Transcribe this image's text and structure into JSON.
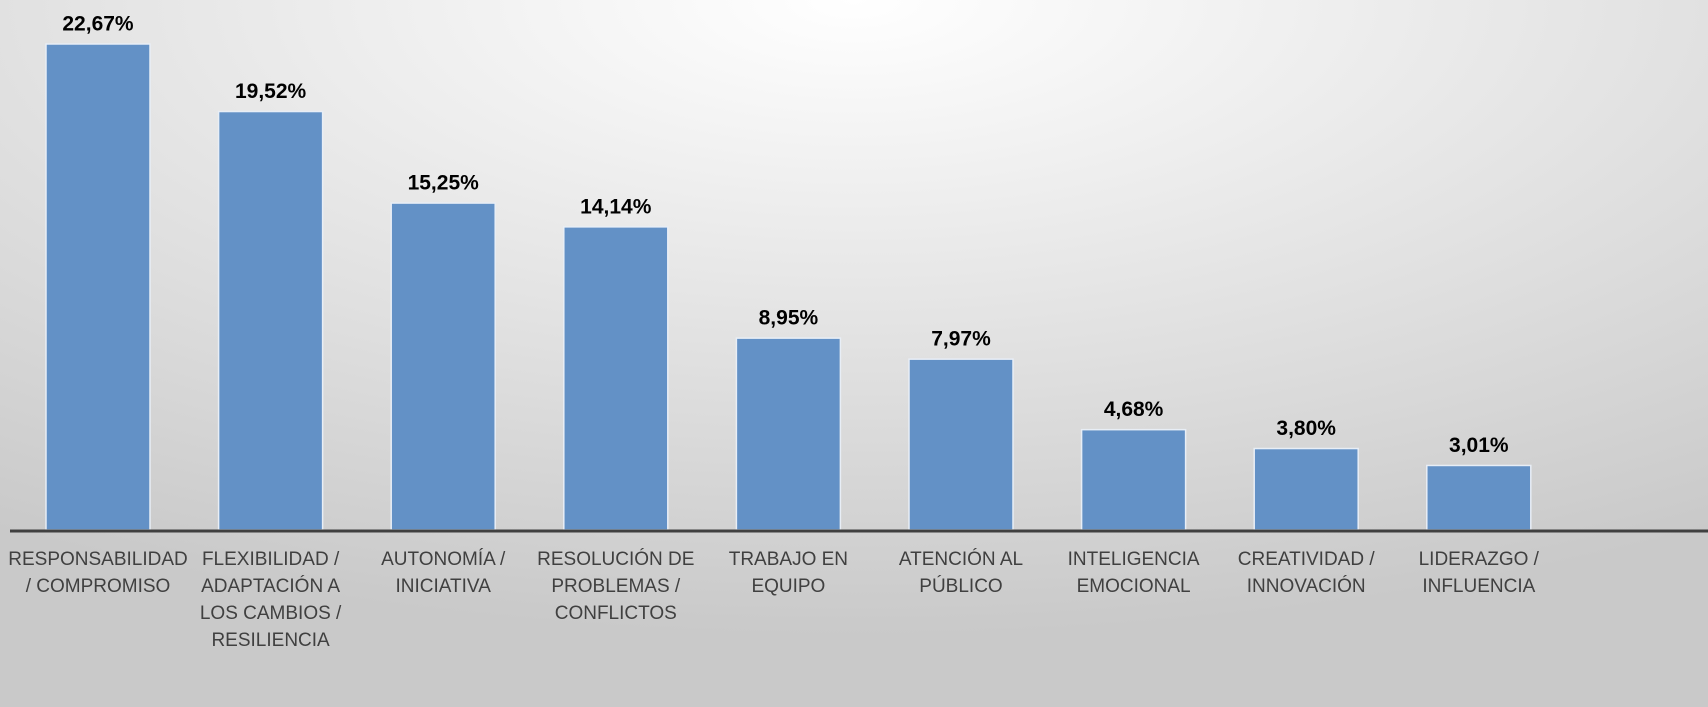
{
  "chart_data": {
    "type": "bar",
    "categories": [
      "RESPONSABILIDAD / COMPROMISO",
      "FLEXIBILIDAD / ADAPTACIÓN A LOS CAMBIOS / RESILIENCIA",
      "AUTONOMÍA / INICIATIVA",
      "RESOLUCIÓN DE PROBLEMAS / CONFLICTOS",
      "TRABAJO EN EQUIPO",
      "ATENCIÓN AL PÚBLICO",
      "INTELIGENCIA EMOCIONAL",
      "CREATIVIDAD / INNOVACIÓN",
      "LIDERAZGO / INFLUENCIA"
    ],
    "values": [
      22.67,
      19.52,
      15.25,
      14.14,
      8.95,
      7.97,
      4.68,
      3.8,
      3.01
    ],
    "value_labels": [
      "22,67%",
      "19,52%",
      "15,25%",
      "14,14%",
      "8,95%",
      "7,97%",
      "4,68%",
      "3,80%",
      "3,01%"
    ],
    "color": "#6391c6"
  }
}
